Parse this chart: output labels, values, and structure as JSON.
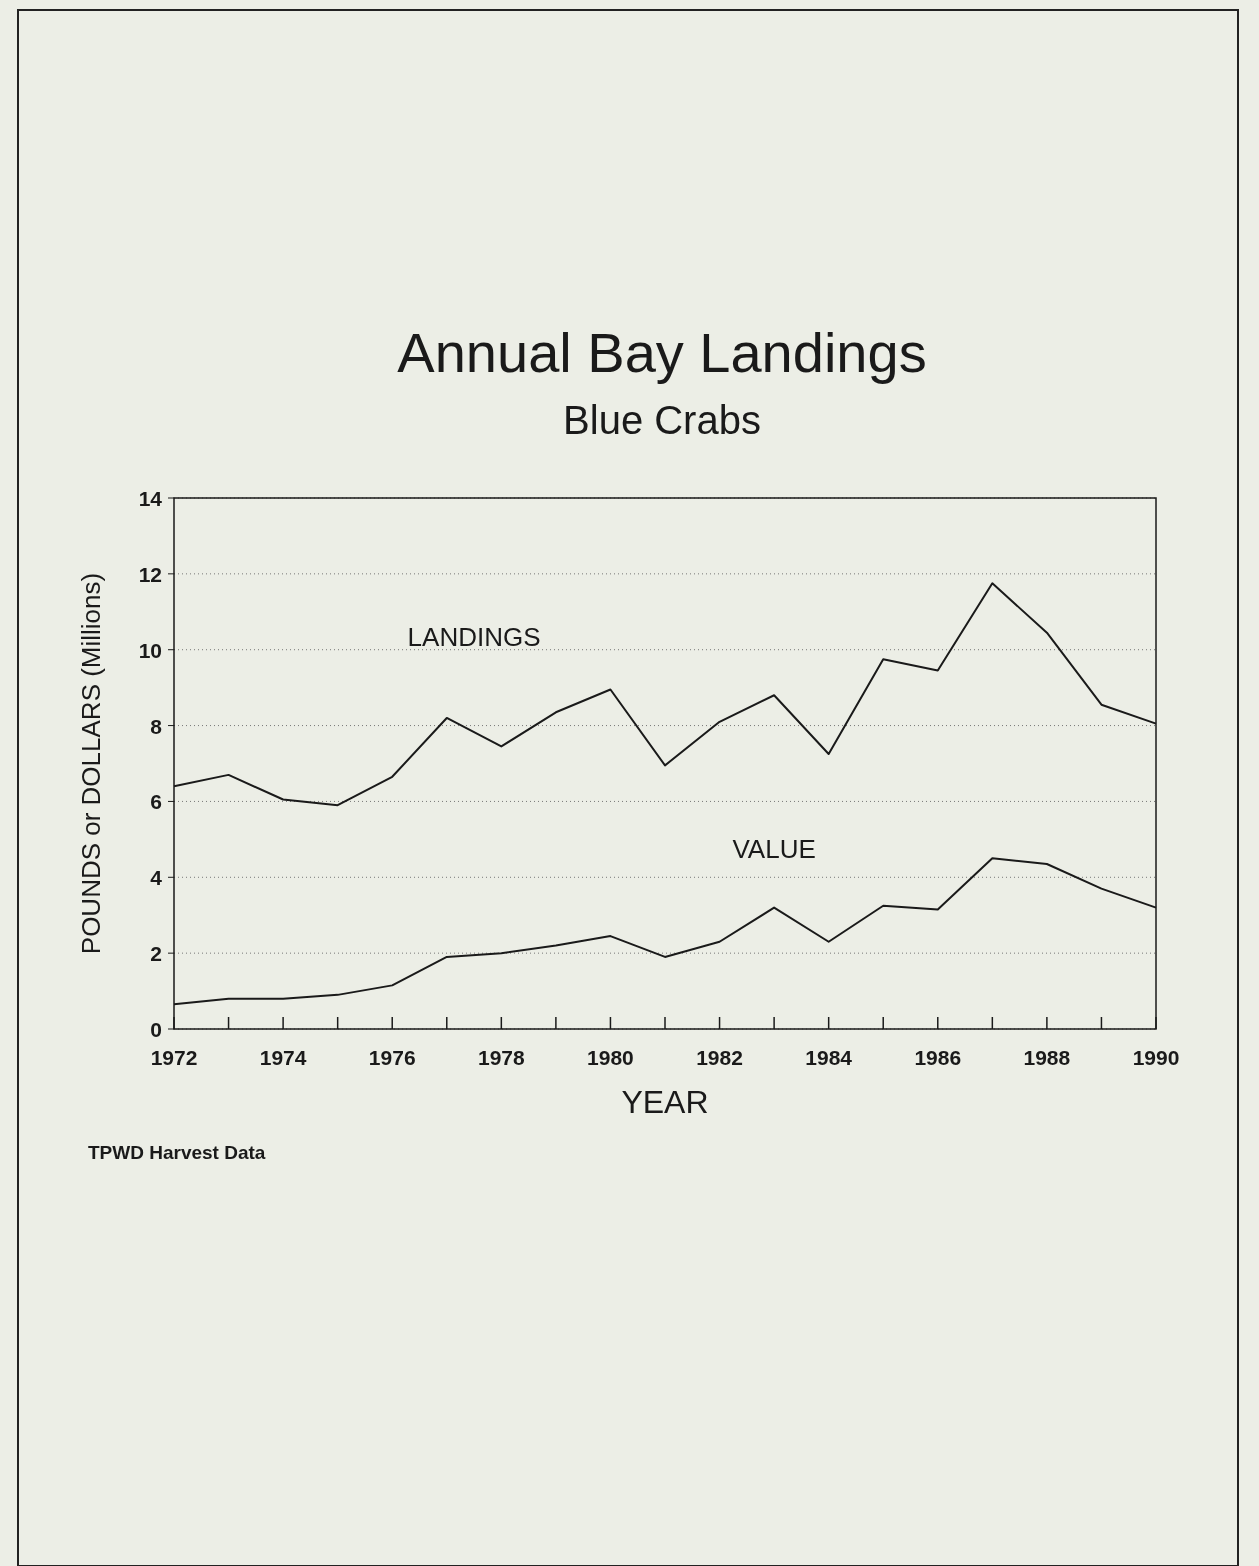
{
  "chart_data": {
    "type": "line",
    "title": "Annual Bay Landings",
    "subtitle": "Blue Crabs",
    "xlabel": "YEAR",
    "ylabel": "POUNDS or DOLLARS (Millions)",
    "annotations": [
      "TPWD Harvest Data"
    ],
    "x": [
      1972,
      1973,
      1974,
      1975,
      1976,
      1977,
      1978,
      1979,
      1980,
      1981,
      1982,
      1983,
      1984,
      1985,
      1986,
      1987,
      1988,
      1989,
      1990
    ],
    "series": [
      {
        "name": "LANDINGS",
        "color": "#1a1a1a",
        "values": [
          6.4,
          6.7,
          6.05,
          5.9,
          6.65,
          8.2,
          7.45,
          8.35,
          8.95,
          6.95,
          8.1,
          8.8,
          7.25,
          9.75,
          9.45,
          11.75,
          10.45,
          8.55,
          8.05
        ]
      },
      {
        "name": "VALUE",
        "color": "#1a1a1a",
        "values": [
          0.65,
          0.8,
          0.8,
          0.9,
          1.15,
          1.9,
          2.0,
          2.2,
          2.45,
          1.9,
          2.3,
          3.2,
          2.3,
          3.25,
          3.15,
          4.5,
          4.35,
          3.7,
          3.2
        ]
      }
    ],
    "xlim": [
      1972,
      1990
    ],
    "xticks": [
      1972,
      {
        "value": 1973,
        "label": null
      },
      1974,
      {
        "value": 1975,
        "label": null
      },
      1976,
      {
        "value": 1977,
        "label": null
      },
      1978,
      {
        "value": 1979,
        "label": null
      },
      1980,
      {
        "value": 1981,
        "label": null
      },
      1982,
      {
        "value": 1983,
        "label": null
      },
      1984,
      {
        "value": 1985,
        "label": null
      },
      1986,
      {
        "value": 1987,
        "label": null
      },
      1988,
      {
        "value": 1989,
        "label": null
      },
      1990
    ],
    "ylim": [
      0,
      14
    ],
    "yticks": [
      0,
      2,
      4,
      6,
      8,
      10,
      12,
      14
    ],
    "grid": "y",
    "legend": false,
    "marker": "none",
    "line_style": "solid"
  }
}
